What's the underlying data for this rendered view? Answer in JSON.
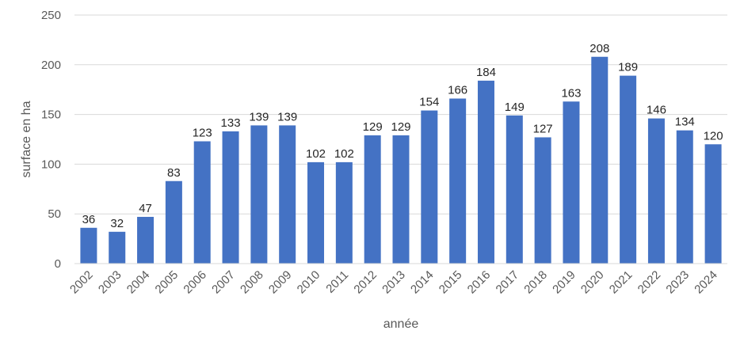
{
  "chart_data": {
    "type": "bar",
    "title": "",
    "xlabel": "année",
    "ylabel": "surface en ha",
    "ylim": [
      0,
      250
    ],
    "yticks": [
      0,
      50,
      100,
      150,
      200,
      250
    ],
    "grid": true,
    "legend": "none",
    "bar_color": "#4472C4",
    "categories": [
      "2002",
      "2003",
      "2004",
      "2005",
      "2006",
      "2007",
      "2008",
      "2009",
      "2010",
      "2011",
      "2012",
      "2013",
      "2014",
      "2015",
      "2016",
      "2017",
      "2018",
      "2019",
      "2020",
      "2021",
      "2022",
      "2023",
      "2024"
    ],
    "values": [
      36,
      32,
      47,
      83,
      123,
      133,
      139,
      139,
      102,
      102,
      129,
      129,
      154,
      166,
      184,
      149,
      127,
      163,
      208,
      189,
      146,
      134,
      120
    ]
  }
}
